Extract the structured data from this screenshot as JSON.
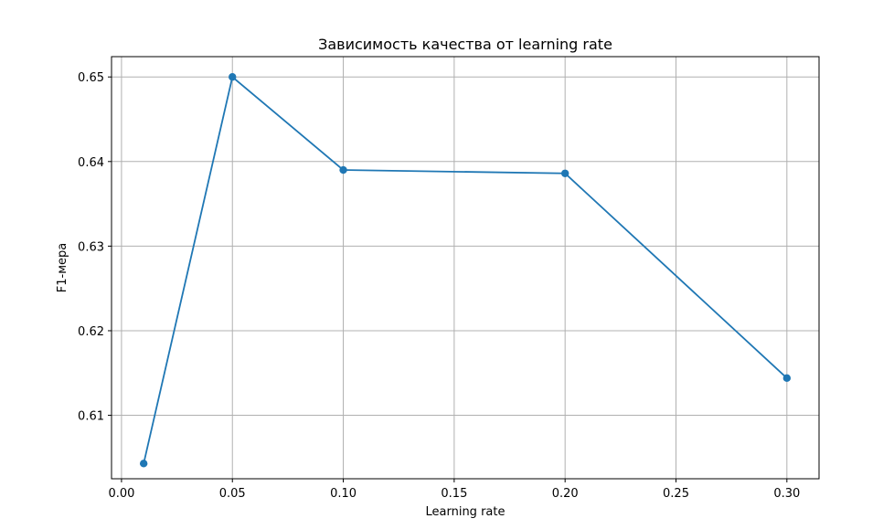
{
  "chart_data": {
    "type": "line",
    "title": "Зависимость качества от learning rate",
    "xlabel": "Learning rate",
    "ylabel": "F1-мера",
    "xlim": [
      -0.0045,
      0.3145
    ],
    "ylim": [
      0.6025,
      0.6524
    ],
    "xticks": [
      0.0,
      0.05,
      0.1,
      0.15,
      0.2,
      0.25,
      0.3
    ],
    "xtick_labels": [
      "0.00",
      "0.05",
      "0.10",
      "0.15",
      "0.20",
      "0.25",
      "0.30"
    ],
    "yticks": [
      0.61,
      0.62,
      0.63,
      0.64,
      0.65
    ],
    "ytick_labels": [
      "0.61",
      "0.62",
      "0.63",
      "0.64",
      "0.65"
    ],
    "grid": true,
    "series": [
      {
        "color": "#1f77b4",
        "marker": "circle",
        "x": [
          0.01,
          0.05,
          0.1,
          0.2,
          0.3
        ],
        "y": [
          0.6043,
          0.65,
          0.639,
          0.6386,
          0.6144
        ]
      }
    ]
  }
}
